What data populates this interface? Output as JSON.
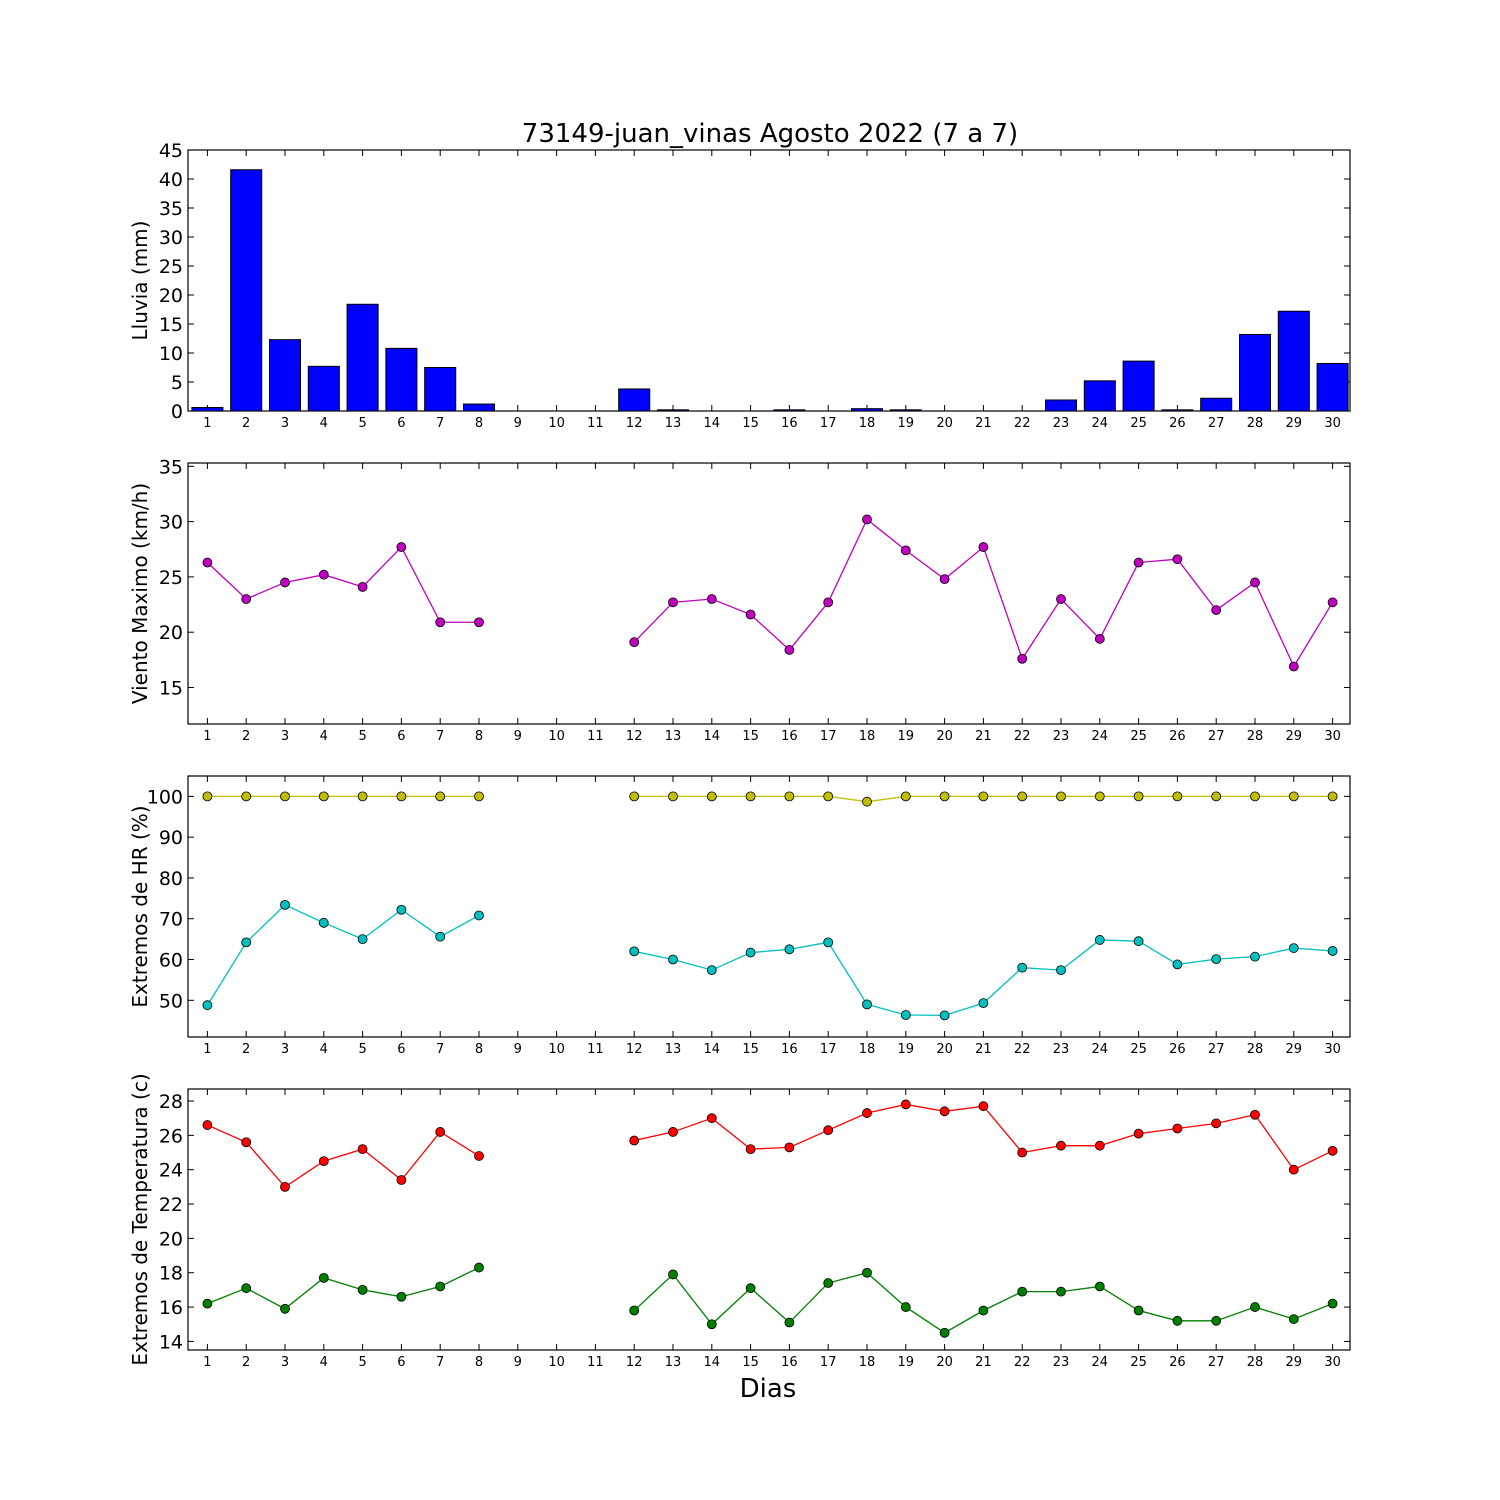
{
  "figure": {
    "title": "73149-juan_vinas Agosto 2022  (7 a 7)",
    "xlabel": "Dias"
  },
  "chart_data": [
    {
      "type": "bar",
      "ylabel": "Lluvia (mm)",
      "ylim": [
        0,
        45
      ],
      "yticks": [
        0,
        5,
        10,
        15,
        20,
        25,
        30,
        35,
        40,
        45
      ],
      "categories": [
        "1",
        "2",
        "3",
        "4",
        "5",
        "6",
        "7",
        "8",
        "9",
        "10",
        "11",
        "12",
        "13",
        "14",
        "15",
        "16",
        "17",
        "18",
        "19",
        "20",
        "21",
        "22",
        "23",
        "24",
        "25",
        "26",
        "27",
        "28",
        "29",
        "30"
      ],
      "series": [
        {
          "color": "#0000ff",
          "values": [
            0.6,
            41.6,
            12.3,
            7.7,
            18.4,
            10.8,
            7.5,
            1.2,
            0,
            0,
            0,
            3.8,
            0.2,
            0,
            0,
            0.2,
            0,
            0.4,
            0.2,
            0,
            0,
            0,
            1.9,
            5.2,
            8.6,
            0.2,
            2.2,
            13.2,
            17.2,
            8.2
          ]
        }
      ],
      "grid": false
    },
    {
      "type": "line",
      "ylabel": "Viento Maximo (km/h)",
      "ylim": [
        11.7,
        35.3
      ],
      "yticks": [
        15,
        20,
        25,
        30,
        35
      ],
      "x": [
        1,
        2,
        3,
        4,
        5,
        6,
        7,
        8,
        9,
        10,
        11,
        12,
        13,
        14,
        15,
        16,
        17,
        18,
        19,
        20,
        21,
        22,
        23,
        24,
        25,
        26,
        27,
        28,
        29,
        30
      ],
      "series": [
        {
          "color": "#bf00bf",
          "values": [
            26.3,
            23.0,
            24.5,
            25.2,
            24.1,
            27.7,
            20.9,
            20.9,
            null,
            null,
            null,
            19.1,
            22.7,
            23.0,
            21.6,
            18.4,
            22.7,
            30.2,
            27.4,
            24.8,
            27.7,
            17.6,
            23.0,
            19.4,
            26.3,
            26.6,
            22.0,
            24.5,
            16.9,
            22.7
          ]
        }
      ],
      "grid": false
    },
    {
      "type": "line",
      "ylabel": "Extremos de HR (%)",
      "ylim": [
        41,
        105
      ],
      "yticks": [
        50,
        60,
        70,
        80,
        90,
        100
      ],
      "x": [
        1,
        2,
        3,
        4,
        5,
        6,
        7,
        8,
        9,
        10,
        11,
        12,
        13,
        14,
        15,
        16,
        17,
        18,
        19,
        20,
        21,
        22,
        23,
        24,
        25,
        26,
        27,
        28,
        29,
        30
      ],
      "series": [
        {
          "color": "#bfbf00",
          "values": [
            100,
            100,
            100,
            100,
            100,
            100,
            100,
            100,
            null,
            null,
            null,
            100,
            100,
            100,
            100,
            100,
            100,
            98.7,
            100,
            100,
            100,
            100,
            100,
            100,
            100,
            100,
            100,
            100,
            100,
            100
          ]
        },
        {
          "color": "#00bfbf",
          "values": [
            48.8,
            64.2,
            73.4,
            69.0,
            65.0,
            72.2,
            65.6,
            70.8,
            null,
            null,
            null,
            62.0,
            60.0,
            57.4,
            61.7,
            62.5,
            64.2,
            49.0,
            46.4,
            46.3,
            49.3,
            58.0,
            57.4,
            64.8,
            64.5,
            58.8,
            60.1,
            60.7,
            62.8,
            62.1
          ]
        }
      ],
      "grid": false
    },
    {
      "type": "line",
      "ylabel": "Extremos de Temperatura (c)",
      "ylim": [
        13.5,
        28.7
      ],
      "yticks": [
        14,
        16,
        18,
        20,
        22,
        24,
        26,
        28
      ],
      "x": [
        1,
        2,
        3,
        4,
        5,
        6,
        7,
        8,
        9,
        10,
        11,
        12,
        13,
        14,
        15,
        16,
        17,
        18,
        19,
        20,
        21,
        22,
        23,
        24,
        25,
        26,
        27,
        28,
        29,
        30
      ],
      "series": [
        {
          "color": "#ff0000",
          "values": [
            26.6,
            25.6,
            23.0,
            24.5,
            25.2,
            23.4,
            26.2,
            24.8,
            null,
            null,
            null,
            25.7,
            26.2,
            27.0,
            25.2,
            25.3,
            26.3,
            27.3,
            27.8,
            27.4,
            27.7,
            25.0,
            25.4,
            25.4,
            26.1,
            26.4,
            26.7,
            27.2,
            24.0,
            25.1
          ]
        },
        {
          "color": "#007f00",
          "values": [
            16.2,
            17.1,
            15.9,
            17.7,
            17.0,
            16.6,
            17.2,
            18.3,
            null,
            null,
            null,
            15.8,
            17.9,
            15.0,
            17.1,
            15.1,
            17.4,
            18.0,
            16.0,
            14.5,
            15.8,
            16.9,
            16.9,
            17.2,
            15.8,
            15.2,
            15.2,
            16.0,
            15.3,
            16.2
          ]
        }
      ],
      "grid": false
    }
  ]
}
